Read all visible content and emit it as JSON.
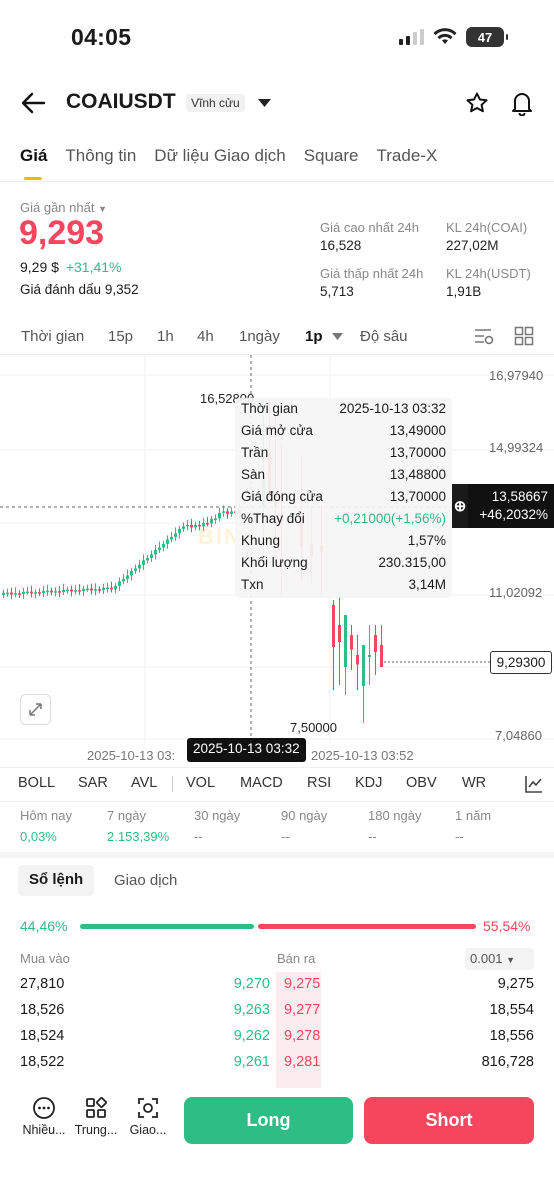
{
  "status": {
    "time": "04:05",
    "battery": "47"
  },
  "header": {
    "symbol": "COAIUSDT",
    "badge": "Vĩnh cửu"
  },
  "tabs": [
    "Giá",
    "Thông tin",
    "Dữ liệu Giao dịch",
    "Square",
    "Trade-X"
  ],
  "price": {
    "last_label": "Giá gần nhất",
    "last": "9,293",
    "usd": "9,29 $",
    "change": "+31,41%",
    "mark_label": "Giá đánh dấu",
    "mark": "9,352"
  },
  "stats": [
    {
      "label": "Giá cao nhất 24h",
      "value": "16,528"
    },
    {
      "label": "KL 24h(COAI)",
      "value": "227,02M"
    },
    {
      "label": "Giá thấp nhất 24h",
      "value": "5,713"
    },
    {
      "label": "KL 24h(USDT)",
      "value": "1,91B"
    }
  ],
  "timeframes": [
    "Thời gian",
    "15p",
    "1h",
    "4h",
    "1ngày",
    "1p",
    "Độ sâu"
  ],
  "chart": {
    "y_labels": [
      "16,97940",
      "14,99324",
      "11,02092",
      "7,04860"
    ],
    "cross_price": "13,58667",
    "cross_pct": "+46,2032%",
    "last_price_tag": "9,29300",
    "high_marker": "16,52800",
    "low_marker": "7,50000",
    "x_labels": [
      "2025-10-13 03:",
      "2025-10-13 03:52"
    ],
    "x_cross": "2025-10-13 03:32",
    "watermark": "BINANCE"
  },
  "tooltip": [
    {
      "k": "Thời gian",
      "v": "2025-10-13 03:32"
    },
    {
      "k": "Giá mở cửa",
      "v": "13,49000"
    },
    {
      "k": "Trần",
      "v": "13,70000"
    },
    {
      "k": "Sàn",
      "v": "13,48800"
    },
    {
      "k": "Giá đóng cửa",
      "v": "13,70000"
    },
    {
      "k": "%Thay đổi",
      "v": "+0,21000(+1,56%)"
    },
    {
      "k": "Khung",
      "v": "1,57%"
    },
    {
      "k": "Khối lượng",
      "v": "230.315,00"
    },
    {
      "k": "Txn",
      "v": "3,14M"
    }
  ],
  "indicators": [
    "BOLL",
    "SAR",
    "AVL",
    "VOL",
    "MACD",
    "RSI",
    "KDJ",
    "OBV",
    "WR"
  ],
  "performance": [
    {
      "label": "Hôm nay",
      "value": "0,03%"
    },
    {
      "label": "7 ngày",
      "value": "2.153,39%"
    },
    {
      "label": "30 ngày",
      "value": "--"
    },
    {
      "label": "90 ngày",
      "value": "--"
    },
    {
      "label": "180 ngày",
      "value": "--"
    },
    {
      "label": "1 năm",
      "value": "--"
    }
  ],
  "orderbook": {
    "tab_active": "Sổ lệnh",
    "tab_other": "Giao dịch",
    "buy_pct": "44,46%",
    "sell_pct": "55,54%",
    "buy_ratio": 0.4446,
    "col_buy": "Mua vào",
    "col_sell": "Bán ra",
    "precision": "0.001",
    "rows": [
      {
        "bq": "27,810",
        "bp": "9,270",
        "sp": "9,275",
        "sq": "9,275"
      },
      {
        "bq": "18,526",
        "bp": "9,263",
        "sp": "9,277",
        "sq": "18,554"
      },
      {
        "bq": "18,524",
        "bp": "9,262",
        "sp": "9,278",
        "sq": "18,556"
      },
      {
        "bq": "18,522",
        "bp": "9,261",
        "sp": "9,281",
        "sq": "816,728"
      }
    ]
  },
  "bottom": {
    "more": "Nhiều...",
    "middle": "Trung...",
    "grid": "Giao...",
    "long": "Long",
    "short": "Short"
  }
}
